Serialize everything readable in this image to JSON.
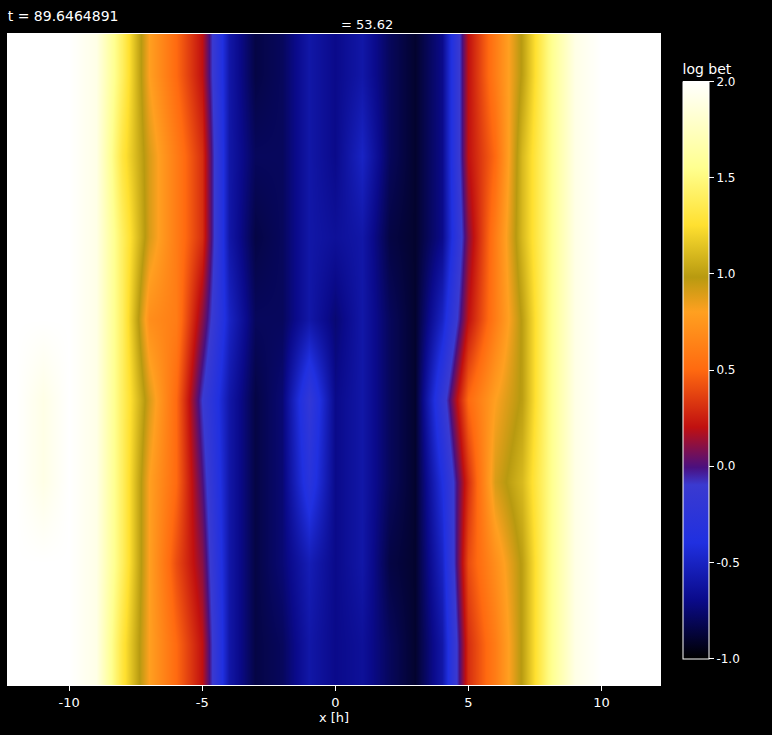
{
  "chart_data": {
    "type": "heatmap",
    "title": "t = 89.6464891",
    "annotations": [
      {
        "text": "= 53.62"
      }
    ],
    "x_label": "x [h]",
    "colorbar_title": "log bet",
    "x": [
      -12,
      -11,
      -10,
      -9,
      -8,
      -7,
      -6,
      -5,
      -4,
      -3,
      -2,
      -1,
      0,
      1,
      2,
      3,
      4,
      5,
      6,
      7,
      8,
      9,
      10,
      11,
      12
    ],
    "y": [
      0,
      1,
      2,
      3,
      4,
      5,
      6,
      7
    ],
    "xlim": [
      -12.3,
      12.2
    ],
    "ylim": [
      -0.5,
      7.5
    ],
    "xticks": [
      -10,
      -5,
      0,
      5,
      10
    ],
    "tick_labels": "x",
    "cells": [
      [
        2.0,
        2.0,
        2.0,
        1.9,
        1.3,
        0.8,
        0.5,
        0.2,
        -0.6,
        -0.85,
        -0.8,
        -0.6,
        -0.7,
        -0.65,
        -0.8,
        -0.9,
        -0.6,
        0.3,
        0.6,
        1.0,
        1.5,
        1.9,
        2.0,
        2.0,
        2.0
      ],
      [
        2.0,
        2.0,
        2.0,
        1.9,
        1.4,
        0.8,
        0.4,
        0.1,
        -0.6,
        -0.85,
        -0.75,
        -0.55,
        -0.7,
        -0.6,
        -0.85,
        -0.9,
        -0.5,
        0.4,
        0.7,
        1.0,
        1.5,
        1.9,
        2.0,
        2.0,
        2.0
      ],
      [
        2.0,
        1.9,
        2.0,
        1.9,
        1.4,
        0.8,
        0.5,
        0.0,
        -0.6,
        -0.85,
        -0.75,
        -0.3,
        -0.7,
        -0.6,
        -0.8,
        -0.9,
        -0.4,
        0.3,
        0.9,
        1.1,
        1.5,
        1.9,
        2.0,
        2.0,
        2.0
      ],
      [
        2.0,
        1.9,
        2.0,
        1.9,
        1.4,
        0.9,
        0.5,
        -0.1,
        -0.6,
        -0.85,
        -0.75,
        -0.2,
        -0.7,
        -0.6,
        -0.8,
        -0.9,
        -0.2,
        0.5,
        0.8,
        1.0,
        1.5,
        1.9,
        2.0,
        2.0,
        2.0
      ],
      [
        2.0,
        2.0,
        2.0,
        1.9,
        1.4,
        0.7,
        0.6,
        0.1,
        -0.5,
        -0.8,
        -0.8,
        -0.6,
        -0.75,
        -0.6,
        -0.8,
        -0.9,
        -0.5,
        0.2,
        0.6,
        1.0,
        1.5,
        1.9,
        2.0,
        2.0,
        2.0
      ],
      [
        2.0,
        2.0,
        2.0,
        1.9,
        1.4,
        0.9,
        0.6,
        0.3,
        -0.6,
        -0.85,
        -0.8,
        -0.6,
        -0.65,
        -0.6,
        -0.85,
        -0.9,
        -0.7,
        0.1,
        0.6,
        1.1,
        1.5,
        1.9,
        2.0,
        2.0,
        2.0
      ],
      [
        2.0,
        2.0,
        2.0,
        1.9,
        1.3,
        0.9,
        0.6,
        0.3,
        -0.6,
        -0.8,
        -0.8,
        -0.6,
        -0.7,
        -0.5,
        -0.8,
        -0.9,
        -0.7,
        0.2,
        0.5,
        1.1,
        1.5,
        1.9,
        2.0,
        2.0,
        2.0
      ],
      [
        2.0,
        2.0,
        2.0,
        1.9,
        1.4,
        0.8,
        0.5,
        0.2,
        -0.6,
        -0.85,
        -0.8,
        -0.6,
        -0.7,
        -0.6,
        -0.8,
        -0.9,
        -0.7,
        0.2,
        0.6,
        1.0,
        1.5,
        1.9,
        2.0,
        2.0,
        2.0
      ]
    ],
    "colorbar_range": [
      -1,
      2
    ],
    "colorbar_ticks": [
      {
        "value": -1,
        "label": "-1.0"
      },
      {
        "value": -0.5,
        "label": "-0.5"
      },
      {
        "value": 0,
        "label": "0.0"
      },
      {
        "value": 0.5,
        "label": "0.5"
      },
      {
        "value": 1,
        "label": "1.0"
      },
      {
        "value": 1.5,
        "label": "1.5"
      },
      {
        "value": 2,
        "label": "2.0"
      }
    ]
  }
}
